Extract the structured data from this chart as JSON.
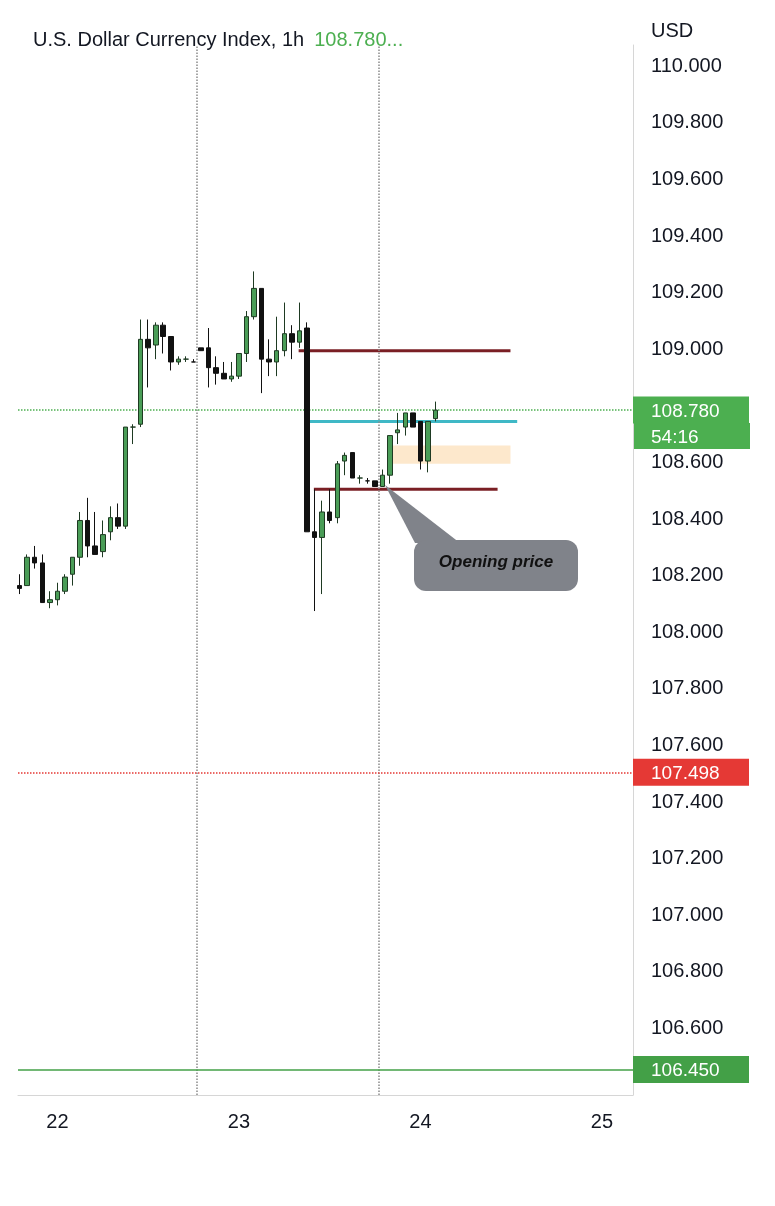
{
  "chart_data": {
    "type": "candlestick",
    "title": "U.S. Dollar Currency Index, 1h",
    "subtitle": "108.780...",
    "ylabel": "USD",
    "x": [
      21.792,
      21.833,
      21.875,
      21.917,
      21.958,
      22,
      22.042,
      22.083,
      22.125,
      22.167,
      22.208,
      22.25,
      22.292,
      22.333,
      22.375,
      22.417,
      22.458,
      22.5,
      22.542,
      22.583,
      22.625,
      22.667,
      22.708,
      22.75,
      22.792,
      22.833,
      22.875,
      22.917,
      22.958,
      23,
      23.042,
      23.083,
      23.125,
      23.167,
      23.208,
      23.25,
      23.292,
      23.333,
      23.375,
      23.417,
      23.458,
      23.5,
      23.542,
      23.583,
      23.625,
      23.667,
      23.708,
      23.75,
      23.792,
      23.833,
      23.875,
      23.917,
      23.958,
      24,
      24.042,
      24.083
    ],
    "ohlc": [
      [
        108.16,
        108.2,
        108.13,
        108.15
      ],
      [
        108.16,
        108.27,
        108.16,
        108.26
      ],
      [
        108.26,
        108.3,
        108.22,
        108.24
      ],
      [
        108.24,
        108.27,
        108.1,
        108.1
      ],
      [
        108.1,
        108.14,
        108.08,
        108.11
      ],
      [
        108.11,
        108.17,
        108.09,
        108.14
      ],
      [
        108.14,
        108.2,
        108.13,
        108.19
      ],
      [
        108.2,
        108.26,
        108.16,
        108.26
      ],
      [
        108.26,
        108.42,
        108.23,
        108.39
      ],
      [
        108.39,
        108.47,
        108.26,
        108.3
      ],
      [
        108.3,
        108.42,
        108.27,
        108.27
      ],
      [
        108.28,
        108.39,
        108.26,
        108.34
      ],
      [
        108.35,
        108.44,
        108.32,
        108.4
      ],
      [
        108.4,
        108.45,
        108.36,
        108.37
      ],
      [
        108.37,
        108.72,
        108.36,
        108.72
      ],
      [
        108.72,
        108.73,
        108.66,
        108.72
      ],
      [
        108.73,
        109.1,
        108.72,
        109.03
      ],
      [
        109.03,
        109.1,
        108.86,
        109.0
      ],
      [
        109.01,
        109.09,
        108.96,
        109.08
      ],
      [
        109.08,
        109.09,
        108.98,
        109.04
      ],
      [
        109.04,
        109.04,
        108.92,
        108.95
      ],
      [
        108.95,
        108.97,
        108.94,
        108.96
      ],
      [
        108.96,
        108.97,
        108.95,
        108.96
      ],
      [
        108.95,
        108.96,
        108.95,
        108.95
      ],
      [
        109.0,
        109.0,
        108.99,
        108.99
      ],
      [
        109.0,
        109.07,
        108.86,
        108.93
      ],
      [
        108.93,
        108.97,
        108.87,
        108.91
      ],
      [
        108.91,
        108.95,
        108.89,
        108.89
      ],
      [
        108.89,
        108.95,
        108.88,
        108.9
      ],
      [
        108.9,
        108.98,
        108.89,
        108.98
      ],
      [
        108.98,
        109.13,
        108.95,
        109.11
      ],
      [
        109.11,
        109.27,
        109.1,
        109.21
      ],
      [
        109.21,
        109.21,
        108.84,
        108.96
      ],
      [
        108.96,
        109.03,
        108.9,
        108.95
      ],
      [
        108.95,
        109.11,
        108.9,
        108.99
      ],
      [
        108.99,
        109.16,
        108.97,
        109.05
      ],
      [
        109.05,
        109.08,
        108.96,
        109.02
      ],
      [
        109.02,
        109.16,
        109.0,
        109.06
      ],
      [
        109.07,
        109.09,
        108.35,
        108.35
      ],
      [
        108.35,
        108.5,
        108.07,
        108.33
      ],
      [
        108.33,
        108.46,
        108.13,
        108.42
      ],
      [
        108.42,
        108.5,
        108.38,
        108.39
      ],
      [
        108.4,
        108.6,
        108.38,
        108.59
      ],
      [
        108.6,
        108.63,
        108.55,
        108.62
      ],
      [
        108.63,
        108.63,
        108.54,
        108.54
      ],
      [
        108.54,
        108.55,
        108.52,
        108.54
      ],
      [
        108.53,
        108.54,
        108.52,
        108.53
      ],
      [
        108.53,
        108.53,
        108.51,
        108.51
      ],
      [
        108.51,
        108.57,
        108.51,
        108.55
      ],
      [
        108.55,
        108.69,
        108.52,
        108.69
      ],
      [
        108.7,
        108.77,
        108.66,
        108.71
      ],
      [
        108.72,
        108.77,
        108.69,
        108.77
      ],
      [
        108.77,
        108.77,
        108.72,
        108.72
      ],
      [
        108.74,
        108.74,
        108.57,
        108.6
      ],
      [
        108.6,
        108.74,
        108.56,
        108.74
      ],
      [
        108.75,
        108.81,
        108.74,
        108.78
      ]
    ],
    "series": [
      {
        "type": "line",
        "color": "#7a1f24",
        "x": [
          23.329,
          24.496
        ],
        "values": [
          108.99,
          108.99
        ]
      },
      {
        "type": "line",
        "color": "#7a1f24",
        "x": [
          23.413,
          24.425
        ],
        "values": [
          108.5,
          108.5
        ]
      },
      {
        "type": "line",
        "color": "#3fb8c6",
        "x": [
          23.383,
          24.533
        ],
        "values": [
          108.74,
          108.74
        ]
      },
      {
        "type": "bar",
        "color": "#fde8cc",
        "x": [
          24.171
        ],
        "base": [
          108.59
        ],
        "values": [
          0.065
        ]
      }
    ],
    "xlim": [
      21.783,
      25.171
    ],
    "xticks": [
      22,
      23,
      24,
      25
    ],
    "ylim": [
      106.36,
      110.07
    ],
    "yticks": [
      {
        "value": 106.6,
        "label": "106.600"
      },
      {
        "value": 106.8,
        "label": "106.800"
      },
      {
        "value": 107.0,
        "label": "107.000"
      },
      {
        "value": 107.2,
        "label": "107.200"
      },
      {
        "value": 107.4,
        "label": "107.400"
      },
      {
        "value": 107.6,
        "label": "107.600"
      },
      {
        "value": 107.8,
        "label": "107.800"
      },
      {
        "value": 108.0,
        "label": "108.000"
      },
      {
        "value": 108.2,
        "label": "108.200"
      },
      {
        "value": 108.4,
        "label": "108.400"
      },
      {
        "value": 108.6,
        "label": "108.600"
      },
      {
        "value": 109.0,
        "label": "109.000"
      },
      {
        "value": 109.2,
        "label": "109.200"
      },
      {
        "value": 109.4,
        "label": "109.400"
      },
      {
        "value": 109.6,
        "label": "109.600"
      },
      {
        "value": 109.8,
        "label": "109.800"
      },
      {
        "value": 110.0,
        "label": "110.000"
      }
    ],
    "ref_lines": [
      {
        "axis": "x",
        "value": 22.771,
        "color": "#8a8a8a",
        "line_style": "dotted"
      },
      {
        "axis": "x",
        "value": 23.771,
        "color": "#8a8a8a",
        "line_style": "dotted"
      },
      {
        "axis": "y",
        "value": 108.78,
        "label": "108.780",
        "color": "#4caf50",
        "line_style": "dotted"
      },
      {
        "axis": "y",
        "value": 107.498,
        "label": "107.498",
        "color": "#e53935",
        "line_style": "dotted"
      },
      {
        "axis": "y",
        "value": 106.45,
        "label": "106.450",
        "color": "#43a047",
        "line_style": "solid"
      }
    ],
    "annotations": [
      "Opening price",
      "54:16"
    ],
    "grid": false
  }
}
